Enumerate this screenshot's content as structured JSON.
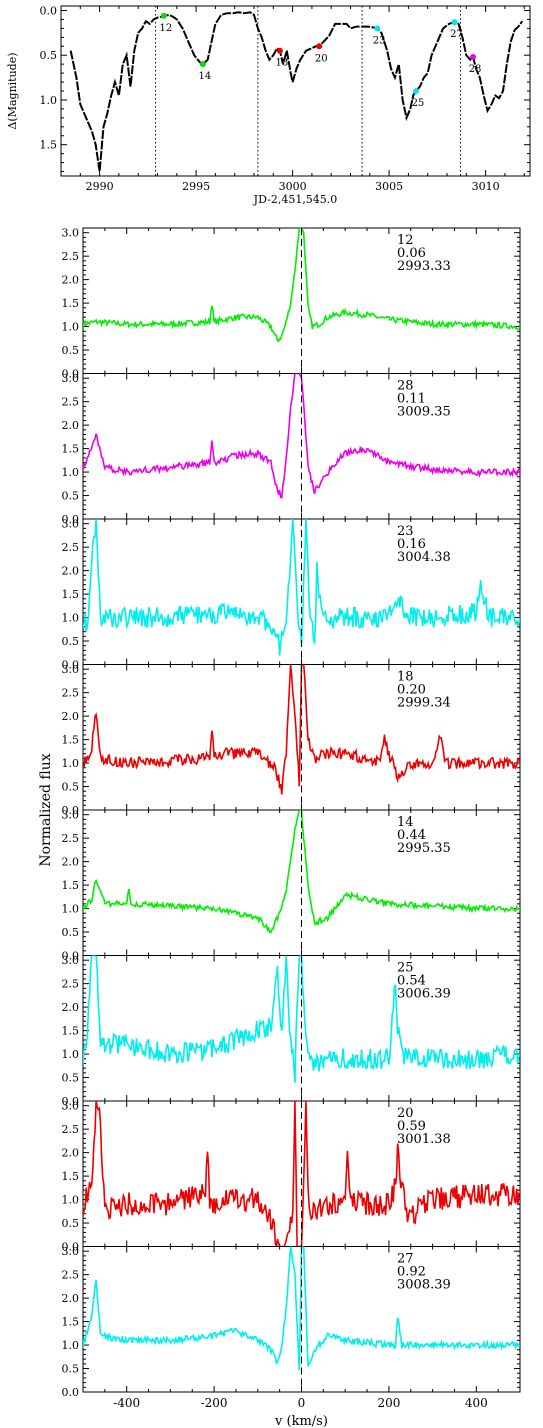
{
  "chart_data": [
    {
      "type": "line",
      "panel": "light-curve",
      "xlabel": "JD-2,451,545.0",
      "ylabel": "Δ(Magnitude)",
      "xlim": [
        2988,
        3012.3
      ],
      "ylim": [
        1.85,
        -0.05
      ],
      "y_inverted": true,
      "x_ticks": [
        2990,
        2995,
        3000,
        3005,
        3010
      ],
      "y_ticks": [
        0.0,
        0.5,
        1.0,
        1.5
      ],
      "y_tick_labels": [
        "0.0",
        "0.5",
        "1.0",
        "1.5"
      ],
      "series": [
        {
          "x": [
            2988.5,
            2988.8,
            2989.0,
            2989.3,
            2989.6,
            2989.8,
            2990.0,
            2990.2,
            2990.4,
            2990.6,
            2990.8,
            2991.0,
            2991.2,
            2991.4,
            2991.6,
            2991.8,
            2992.0,
            2992.2,
            2992.4,
            2992.6,
            2992.8,
            2993.0,
            2993.2,
            2993.35,
            2993.6,
            2993.8,
            2994.0,
            2994.3,
            2994.6,
            2994.9,
            2995.2,
            2995.35,
            2995.6,
            2995.8,
            2996.0,
            2996.3,
            2996.6,
            2996.9,
            2997.2,
            2997.5,
            2997.8,
            2998.0,
            2998.2,
            2998.4,
            2998.6,
            2998.8,
            2999.0,
            2999.2,
            2999.34,
            2999.5,
            2999.7,
            2999.9,
            3000.0,
            3000.2,
            3000.4,
            3000.7,
            3001.0,
            3001.2,
            3001.38,
            3001.6,
            3001.9,
            3002.2,
            3002.5,
            3002.8,
            3003.0,
            3003.3,
            3003.6,
            3003.9,
            3004.2,
            3004.38,
            3004.6,
            3004.9,
            3005.1,
            3005.3,
            3005.5,
            3005.7,
            3005.9,
            3006.1,
            3006.25,
            3006.39,
            3006.6,
            3006.8,
            3007.0,
            3007.2,
            3007.5,
            3007.8,
            3008.1,
            3008.39,
            3008.6,
            3008.8,
            3009.0,
            3009.2,
            3009.35,
            3009.5,
            3009.7,
            3009.9,
            3010.1,
            3010.3,
            3010.5,
            3010.7,
            3010.9,
            3011.1,
            3011.3,
            3011.5,
            3011.7,
            3011.9
          ],
          "y": [
            0.45,
            0.75,
            1.05,
            1.2,
            1.35,
            1.5,
            1.8,
            1.3,
            1.15,
            0.95,
            0.8,
            0.95,
            0.6,
            0.5,
            0.85,
            0.45,
            0.25,
            0.2,
            0.12,
            0.15,
            0.1,
            0.08,
            0.07,
            0.06,
            0.05,
            0.07,
            0.1,
            0.2,
            0.35,
            0.5,
            0.58,
            0.6,
            0.55,
            0.35,
            0.15,
            0.05,
            0.03,
            0.03,
            0.02,
            0.03,
            0.02,
            0.05,
            0.2,
            0.3,
            0.45,
            0.55,
            0.5,
            0.42,
            0.45,
            0.6,
            0.45,
            0.7,
            0.8,
            0.65,
            0.55,
            0.45,
            0.42,
            0.4,
            0.4,
            0.35,
            0.28,
            0.15,
            0.15,
            0.15,
            0.2,
            0.18,
            0.18,
            0.18,
            0.19,
            0.2,
            0.25,
            0.45,
            0.65,
            0.75,
            0.6,
            1.0,
            1.2,
            1.1,
            0.95,
            0.9,
            0.85,
            0.75,
            0.7,
            0.5,
            0.35,
            0.2,
            0.15,
            0.13,
            0.15,
            0.3,
            0.5,
            0.55,
            0.52,
            0.65,
            0.75,
            0.95,
            1.12,
            1.05,
            0.95,
            0.98,
            0.9,
            0.6,
            0.35,
            0.22,
            0.18,
            0.12
          ]
        }
      ],
      "markers": [
        {
          "label": "12",
          "x": 2993.33,
          "y": 0.06,
          "color": "#00dd00"
        },
        {
          "label": "14",
          "x": 2995.35,
          "y": 0.6,
          "color": "#00dd00"
        },
        {
          "label": "18",
          "x": 2999.34,
          "y": 0.45,
          "color": "#ee0000"
        },
        {
          "label": "20",
          "x": 3001.38,
          "y": 0.4,
          "color": "#ee0000"
        },
        {
          "label": "23",
          "x": 3004.38,
          "y": 0.2,
          "color": "#00e5ee"
        },
        {
          "label": "25",
          "x": 3006.39,
          "y": 0.9,
          "color": "#00e5ee"
        },
        {
          "label": "27",
          "x": 3008.39,
          "y": 0.13,
          "color": "#00e5ee"
        },
        {
          "label": "28",
          "x": 3009.35,
          "y": 0.52,
          "color": "#ee00ee"
        }
      ],
      "vertical_dotted_lines_x": [
        2992.9,
        2998.2,
        3003.6,
        3008.7
      ]
    },
    {
      "type": "line",
      "panel": "spectra",
      "xlabel": "v (km/s)",
      "ylabel": "Normalized flux",
      "xlim": [
        -500,
        500
      ],
      "ylim": [
        0.0,
        3.1
      ],
      "x_ticks": [
        -400,
        -200,
        0,
        200,
        400
      ],
      "y_ticks": [
        0.0,
        0.5,
        1.0,
        1.5,
        2.0,
        2.5,
        3.0
      ],
      "y_tick_labels": [
        "0.0",
        "0.5",
        "1.0",
        "1.5",
        "2.0",
        "2.5",
        "3.0"
      ],
      "vertical_dashed_line_x": 0,
      "spectra": [
        {
          "label": "12",
          "phase": "0.06",
          "date": "2993.33",
          "color": "#00ee00",
          "x": [
            -500,
            -470,
            -400,
            -300,
            -210,
            -205,
            -200,
            -150,
            -100,
            -70,
            -55,
            -45,
            -35,
            -25,
            -15,
            -5,
            0,
            5,
            15,
            25,
            40,
            60,
            100,
            150,
            200,
            250,
            300,
            400,
            500
          ],
          "y": [
            1.05,
            1.1,
            1.05,
            1.05,
            1.1,
            1.5,
            1.1,
            1.2,
            1.2,
            1.0,
            0.7,
            0.8,
            1.1,
            1.5,
            2.2,
            3.1,
            3.1,
            3.0,
            1.4,
            1.0,
            1.05,
            1.2,
            1.3,
            1.25,
            1.15,
            1.1,
            1.05,
            1.05,
            1.0
          ]
        },
        {
          "label": "28",
          "phase": "0.11",
          "date": "3009.35",
          "color": "#ee00ee",
          "x": [
            -500,
            -480,
            -470,
            -450,
            -400,
            -300,
            -210,
            -205,
            -200,
            -150,
            -100,
            -70,
            -55,
            -45,
            -35,
            -25,
            -15,
            -5,
            0,
            5,
            15,
            30,
            60,
            100,
            150,
            200,
            300,
            400,
            500
          ],
          "y": [
            1.1,
            1.5,
            1.8,
            1.1,
            1.0,
            1.1,
            1.2,
            1.7,
            1.2,
            1.35,
            1.4,
            1.2,
            0.6,
            0.5,
            1.3,
            2.4,
            3.1,
            3.1,
            3.0,
            2.5,
            1.1,
            0.6,
            1.0,
            1.4,
            1.5,
            1.2,
            1.05,
            1.0,
            1.0
          ]
        },
        {
          "label": "23",
          "phase": "0.16",
          "date": "3004.38",
          "color": "#00eeee",
          "x": [
            -500,
            -490,
            -480,
            -470,
            -460,
            -400,
            -300,
            -200,
            -100,
            -60,
            -50,
            -40,
            -30,
            -20,
            -10,
            0,
            10,
            20,
            30,
            35,
            45,
            60,
            100,
            200,
            220,
            240,
            300,
            400,
            410,
            430,
            500
          ],
          "y": [
            1.0,
            0.8,
            2.2,
            3.1,
            1.0,
            1.0,
            1.0,
            1.1,
            1.0,
            0.8,
            0.4,
            0.6,
            1.5,
            3.1,
            1.2,
            0.4,
            3.1,
            1.0,
            0.4,
            2.0,
            1.2,
            1.0,
            1.0,
            1.0,
            1.5,
            1.0,
            1.0,
            1.1,
            1.8,
            1.0,
            1.0
          ]
        },
        {
          "label": "18",
          "phase": "0.20",
          "date": "2999.34",
          "color": "#ee0000",
          "x": [
            -500,
            -480,
            -470,
            -460,
            -400,
            -300,
            -210,
            -205,
            -200,
            -150,
            -100,
            -60,
            -45,
            -35,
            -25,
            -15,
            -5,
            0,
            5,
            15,
            30,
            60,
            100,
            150,
            180,
            190,
            200,
            220,
            250,
            300,
            320,
            330,
            400,
            500
          ],
          "y": [
            1.0,
            1.3,
            2.1,
            1.1,
            1.0,
            1.05,
            1.1,
            1.6,
            1.2,
            1.2,
            1.2,
            0.9,
            0.4,
            1.2,
            3.1,
            2.0,
            0.6,
            3.1,
            3.1,
            1.5,
            1.1,
            1.2,
            1.2,
            1.1,
            1.0,
            1.5,
            1.2,
            0.7,
            1.0,
            1.0,
            1.6,
            1.0,
            1.0,
            1.0
          ]
        },
        {
          "label": "14",
          "phase": "0.44",
          "date": "2995.35",
          "color": "#00ee00",
          "x": [
            -500,
            -480,
            -470,
            -450,
            -400,
            -395,
            -390,
            -300,
            -200,
            -150,
            -100,
            -70,
            -55,
            -45,
            -35,
            -25,
            -15,
            -5,
            0,
            5,
            15,
            30,
            60,
            100,
            150,
            200,
            300,
            400,
            500
          ],
          "y": [
            1.0,
            1.2,
            1.65,
            1.1,
            1.1,
            1.4,
            1.1,
            1.05,
            1.0,
            0.9,
            0.8,
            0.5,
            0.8,
            1.0,
            1.4,
            2.0,
            2.7,
            3.1,
            3.1,
            2.5,
            1.5,
            0.7,
            0.8,
            1.3,
            1.2,
            1.1,
            1.05,
            1.0,
            1.0
          ]
        },
        {
          "label": "25",
          "phase": "0.54",
          "date": "3006.39",
          "color": "#00eeee",
          "x": [
            -500,
            -490,
            -480,
            -470,
            -460,
            -400,
            -300,
            -200,
            -150,
            -100,
            -70,
            -55,
            -45,
            -35,
            -25,
            -15,
            -5,
            0,
            5,
            15,
            30,
            60,
            100,
            200,
            215,
            220,
            230,
            300,
            400,
            500
          ],
          "y": [
            1.0,
            1.5,
            3.1,
            3.1,
            1.2,
            1.2,
            1.0,
            1.1,
            1.3,
            1.5,
            1.6,
            2.8,
            1.4,
            3.1,
            1.2,
            0.6,
            3.1,
            3.1,
            2.0,
            1.0,
            0.8,
            0.9,
            0.9,
            0.9,
            2.5,
            1.5,
            1.0,
            0.9,
            0.9,
            1.0
          ]
        },
        {
          "label": "20",
          "phase": "0.59",
          "date": "3001.38",
          "color": "#ee0000",
          "x": [
            -500,
            -480,
            -470,
            -460,
            -450,
            -400,
            -300,
            -220,
            -215,
            -210,
            -200,
            -150,
            -100,
            -80,
            -60,
            -50,
            -40,
            -30,
            -20,
            -15,
            -10,
            0,
            10,
            15,
            20,
            60,
            100,
            105,
            110,
            150,
            200,
            215,
            220,
            240,
            300,
            400,
            500
          ],
          "y": [
            0.9,
            1.2,
            3.1,
            2.6,
            0.8,
            0.9,
            0.9,
            1.2,
            2.2,
            1.0,
            0.9,
            1.0,
            1.0,
            0.8,
            0.3,
            0.0,
            0.0,
            0.2,
            0.8,
            3.1,
            0.0,
            0.0,
            3.1,
            1.5,
            0.7,
            0.9,
            1.0,
            1.8,
            1.0,
            0.9,
            0.9,
            1.3,
            2.0,
            0.6,
            1.0,
            1.1,
            1.1
          ]
        },
        {
          "label": "27",
          "phase": "0.92",
          "date": "3008.39",
          "color": "#00eeee",
          "x": [
            -500,
            -480,
            -470,
            -460,
            -400,
            -300,
            -200,
            -150,
            -100,
            -70,
            -55,
            -45,
            -35,
            -25,
            -15,
            -5,
            0,
            5,
            15,
            30,
            60,
            100,
            200,
            215,
            220,
            230,
            300,
            400,
            500
          ],
          "y": [
            1.0,
            1.6,
            2.4,
            1.2,
            1.1,
            1.1,
            1.2,
            1.3,
            1.1,
            0.9,
            0.6,
            1.0,
            1.8,
            3.1,
            2.5,
            0.5,
            3.1,
            3.1,
            0.5,
            0.9,
            1.2,
            1.1,
            1.0,
            1.0,
            1.6,
            1.0,
            1.0,
            1.0,
            1.0
          ]
        }
      ]
    }
  ]
}
